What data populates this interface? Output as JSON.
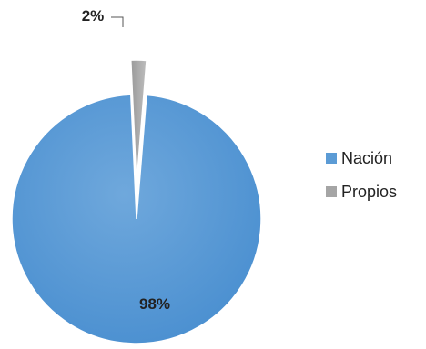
{
  "chart_data": {
    "type": "pie",
    "title": "",
    "slices": [
      {
        "label": "Nación",
        "value": 98,
        "display": "98%",
        "color": "#5b9bd5"
      },
      {
        "label": "Propios",
        "value": 2,
        "display": "2%",
        "color": "#a5a5a5"
      }
    ],
    "legend_position": "right"
  }
}
